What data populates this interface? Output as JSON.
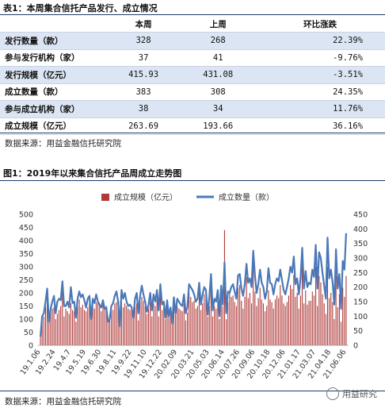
{
  "table": {
    "title": "表1：本周集合信托产品发行、成立情况",
    "headers": [
      "",
      "本周",
      "上周",
      "环比涨跌"
    ],
    "rows": [
      {
        "label": "发行数量（款）",
        "this_week": "328",
        "last_week": "268",
        "change": "22.39%"
      },
      {
        "label": "参与发行机构（家）",
        "this_week": "37",
        "last_week": "41",
        "change": "-9.76%"
      },
      {
        "label": "发行规模（亿元）",
        "this_week": "415.93",
        "last_week": "431.08",
        "change": "-3.51%"
      },
      {
        "label": "成立数量（款）",
        "this_week": "383",
        "last_week": "308",
        "change": "24.35%"
      },
      {
        "label": "参与成立机构（家）",
        "this_week": "38",
        "last_week": "34",
        "change": "11.76%"
      },
      {
        "label": "成立规模（亿元）",
        "this_week": "263.69",
        "last_week": "193.66",
        "change": "36.16%"
      }
    ],
    "source": "数据来源：用益金融信托研究院"
  },
  "figure": {
    "title": "图1：2019年以来集合信托产品周成立走势图",
    "source": "数据来源：用益金融信托研究院"
  },
  "watermark": "用益研究",
  "chart_data": {
    "type": "bar+line",
    "legend_position": "top",
    "series": [
      {
        "name": "成立规模（亿元）",
        "type": "bar",
        "axis": "left",
        "color": "#b03a3a",
        "values": [
          40,
          100,
          110,
          150,
          180,
          95,
          130,
          140,
          145,
          100,
          120,
          135,
          150,
          200,
          110,
          140,
          130,
          120,
          160,
          135,
          130,
          90,
          150,
          175,
          145,
          155,
          135,
          130,
          145,
          160,
          100,
          155,
          140,
          165,
          170,
          150,
          130,
          155,
          140,
          150,
          95,
          105,
          140,
          135,
          160,
          165,
          155,
          90,
          170,
          145,
          160,
          150,
          140,
          135,
          140,
          110,
          150,
          160,
          95,
          165,
          185,
          170,
          150,
          120,
          140,
          165,
          110,
          160,
          150,
          175,
          110,
          205,
          135,
          150,
          100,
          145,
          120,
          140,
          95,
          160,
          120,
          150,
          140,
          135,
          130,
          160,
          95,
          125,
          200,
          185,
          165,
          170,
          140,
          150,
          210,
          135,
          160,
          195,
          185,
          110,
          150,
          240,
          110,
          150,
          140,
          185,
          100,
          210,
          150,
          440,
          100,
          165,
          200,
          185,
          190,
          165,
          150,
          220,
          230,
          170,
          140,
          185,
          260,
          180,
          200,
          160,
          325,
          205,
          150,
          180,
          220,
          175,
          160,
          130,
          150,
          210,
          175,
          165,
          140,
          175,
          190,
          180,
          230,
          190,
          160,
          150,
          165,
          190,
          230,
          215,
          270,
          185,
          200,
          140,
          190,
          300,
          160,
          210,
          155,
          170,
          170,
          205,
          190,
          300,
          150,
          265,
          240,
          195,
          160,
          120,
          300,
          180,
          200,
          165,
          100,
          265,
          145,
          195,
          90,
          220,
          185,
          265
        ]
      },
      {
        "name": "成立数量（款）",
        "type": "line",
        "axis": "right",
        "color": "#4a78b8",
        "values": [
          30,
          100,
          110,
          150,
          195,
          80,
          125,
          150,
          170,
          110,
          150,
          160,
          155,
          220,
          135,
          135,
          150,
          130,
          200,
          145,
          150,
          95,
          160,
          185,
          165,
          175,
          155,
          130,
          160,
          170,
          90,
          160,
          145,
          175,
          150,
          140,
          130,
          155,
          125,
          130,
          80,
          90,
          135,
          145,
          170,
          185,
          150,
          65,
          190,
          160,
          180,
          150,
          135,
          140,
          130,
          95,
          160,
          180,
          110,
          170,
          205,
          175,
          150,
          115,
          140,
          180,
          120,
          175,
          150,
          190,
          120,
          210,
          140,
          150,
          95,
          155,
          100,
          130,
          75,
          165,
          110,
          160,
          150,
          140,
          135,
          175,
          110,
          130,
          210,
          200,
          190,
          175,
          150,
          160,
          215,
          140,
          175,
          200,
          190,
          105,
          165,
          245,
          120,
          160,
          150,
          190,
          100,
          205,
          140,
          285,
          110,
          185,
          180,
          200,
          210,
          185,
          160,
          240,
          245,
          195,
          170,
          210,
          280,
          215,
          230,
          200,
          325,
          240,
          180,
          210,
          260,
          215,
          200,
          160,
          185,
          265,
          215,
          210,
          175,
          210,
          230,
          220,
          260,
          225,
          190,
          175,
          200,
          230,
          270,
          250,
          305,
          210,
          230,
          175,
          230,
          335,
          195,
          255,
          200,
          215,
          210,
          260,
          235,
          345,
          195,
          320,
          300,
          250,
          205,
          160,
          370,
          230,
          260,
          215,
          140,
          330,
          195,
          245,
          125,
          290,
          260,
          385
        ]
      }
    ],
    "x_tick_labels": [
      "19.1.06",
      "19.2.24",
      "19.4.7",
      "19.5.19",
      "19.6.30",
      "19.8.11",
      "19.9.22",
      "19.11.10",
      "19.12.22",
      "20.02.09",
      "20.03.21",
      "20.05.03",
      "20.06.14",
      "20.07.26",
      "20.09.06",
      "20.10.18",
      "20.12.06",
      "21.01.17",
      "21.03.07",
      "21.04.18",
      "21.06.06"
    ],
    "y_left": {
      "min": 0,
      "max": 500,
      "ticks": [
        0,
        50,
        100,
        150,
        200,
        250,
        300,
        350,
        400,
        450,
        500
      ]
    },
    "y_right": {
      "min": 0,
      "max": 450,
      "ticks": [
        0,
        50,
        100,
        150,
        200,
        250,
        300,
        350,
        400,
        450
      ]
    },
    "grid": false
  }
}
